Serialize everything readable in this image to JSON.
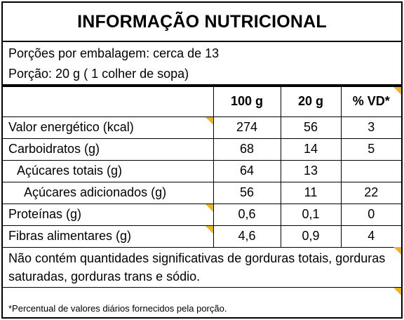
{
  "title": "INFORMAÇÃO NUTRICIONAL",
  "serving": {
    "portions": "Porções por embalagem: cerca de 13",
    "portion_size": "Porção: 20 g ( 1 colher de sopa)"
  },
  "columns": [
    "100 g",
    "20 g",
    "% VD*"
  ],
  "rows": [
    {
      "name": "Valor energético (kcal)",
      "v100": "274",
      "v20": "56",
      "vd": "3"
    },
    {
      "name": "Carboidratos (g)",
      "v100": "68",
      "v20": "14",
      "vd": "5"
    },
    {
      "name": "Açúcares totais (g)",
      "v100": "64",
      "v20": "13",
      "vd": ""
    },
    {
      "name": "Açúcares adicionados (g)",
      "v100": "56",
      "v20": "11",
      "vd": "22"
    },
    {
      "name": "Proteínas (g)",
      "v100": "0,6",
      "v20": "0,1",
      "vd": "0"
    },
    {
      "name": "Fibras alimentares (g)",
      "v100": "4,6",
      "v20": "0,9",
      "vd": "4"
    }
  ],
  "note": "Não contém quantidades significativas de gorduras totais, gorduras saturadas, gorduras trans  e sódio.",
  "footnote": "*Percentual de valores diários fornecidos pela porção.",
  "colors": {
    "accent": "#f0b41e"
  }
}
